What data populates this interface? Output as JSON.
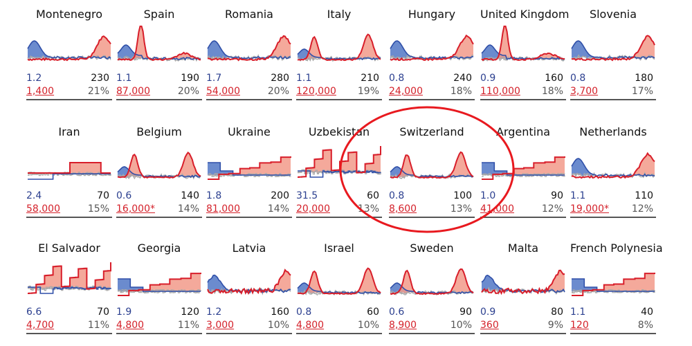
{
  "colors": {
    "blue_fill": "#5b7ec9",
    "blue_line": "#2f4fa8",
    "red_fill": "#f29a8a",
    "red_line": "#d81e2a",
    "gray_line": "#a8a8a8",
    "dark_line": "#222222",
    "ratio_text": "#2b3f8f",
    "cases_text": "#d4212a",
    "highlight": "#e8191f"
  },
  "chart_data": [
    {
      "type": "area",
      "title": "Montenegro",
      "ratio": "1.2",
      "total": "230",
      "cases": "1,400",
      "pct": "21%",
      "shape": "blue-early-red-late"
    },
    {
      "type": "area",
      "title": "Spain",
      "ratio": "1.1",
      "total": "190",
      "cases": "87,000",
      "pct": "20%",
      "shape": "tall-early-spike"
    },
    {
      "type": "area",
      "title": "Romania",
      "ratio": "1.7",
      "total": "280",
      "cases": "54,000",
      "pct": "20%",
      "shape": "blue-early-red-late"
    },
    {
      "type": "area",
      "title": "Italy",
      "ratio": "1.1",
      "total": "210",
      "cases": "120,000",
      "pct": "19%",
      "shape": "early-spike-late-hump"
    },
    {
      "type": "area",
      "title": "Hungary",
      "ratio": "0.8",
      "total": "240",
      "cases": "24,000",
      "pct": "18%",
      "shape": "blue-early-red-late"
    },
    {
      "type": "area",
      "title": "United Kingdom",
      "ratio": "0.9",
      "total": "160",
      "cases": "110,000",
      "pct": "18%",
      "shape": "tall-early-spike"
    },
    {
      "type": "area",
      "title": "Slovenia",
      "ratio": "0.8",
      "total": "180",
      "cases": "3,700",
      "pct": "17%",
      "shape": "blue-early-red-late"
    },
    {
      "type": "area",
      "title": "Iran",
      "ratio": "2.4",
      "total": "70",
      "cases": "58,000",
      "pct": "15%",
      "shape": "step-plateau"
    },
    {
      "type": "area",
      "title": "Belgium",
      "ratio": "0.6",
      "total": "140",
      "cases": "16,000*",
      "pct": "14%",
      "shape": "early-spike-late-hump"
    },
    {
      "type": "area",
      "title": "Ukraine",
      "ratio": "1.8",
      "total": "200",
      "cases": "81,000",
      "pct": "14%",
      "shape": "step-rising"
    },
    {
      "type": "area",
      "title": "Uzbekistan",
      "ratio": "31.5",
      "total": "60",
      "cases": "20,000",
      "pct": "13%",
      "shape": "step-jagged"
    },
    {
      "type": "area",
      "title": "Switzerland",
      "ratio": "0.8",
      "total": "100",
      "cases": "8,600",
      "pct": "13%",
      "shape": "early-spike-late-hump"
    },
    {
      "type": "area",
      "title": "Argentina",
      "ratio": "1.0",
      "total": "90",
      "cases": "41,000",
      "pct": "12%",
      "shape": "step-rising"
    },
    {
      "type": "area",
      "title": "Netherlands",
      "ratio": "1.1",
      "total": "110",
      "cases": "19,000*",
      "pct": "12%",
      "shape": "blue-early-red-late"
    },
    {
      "type": "area",
      "title": "El Salvador",
      "ratio": "6.6",
      "total": "70",
      "cases": "4,700",
      "pct": "11%",
      "shape": "step-jagged"
    },
    {
      "type": "area",
      "title": "Georgia",
      "ratio": "1.9",
      "total": "120",
      "cases": "4,800",
      "pct": "11%",
      "shape": "step-rising"
    },
    {
      "type": "area",
      "title": "Latvia",
      "ratio": "1.2",
      "total": "160",
      "cases": "3,000",
      "pct": "10%",
      "shape": "noisy-late-rise"
    },
    {
      "type": "area",
      "title": "Israel",
      "ratio": "0.8",
      "total": "60",
      "cases": "4,800",
      "pct": "10%",
      "shape": "early-spike-late-hump"
    },
    {
      "type": "area",
      "title": "Sweden",
      "ratio": "0.6",
      "total": "90",
      "cases": "8,900",
      "pct": "10%",
      "shape": "early-spike-late-hump"
    },
    {
      "type": "area",
      "title": "Malta",
      "ratio": "0.9",
      "total": "80",
      "cases": "360",
      "pct": "9%",
      "shape": "noisy-late-rise"
    },
    {
      "type": "area",
      "title": "French Polynesia",
      "ratio": "1.1",
      "total": "40",
      "cases": "120",
      "pct": "8%",
      "shape": "step-rising"
    }
  ],
  "highlight": {
    "target": "Switzerland",
    "shape": "ellipse"
  }
}
